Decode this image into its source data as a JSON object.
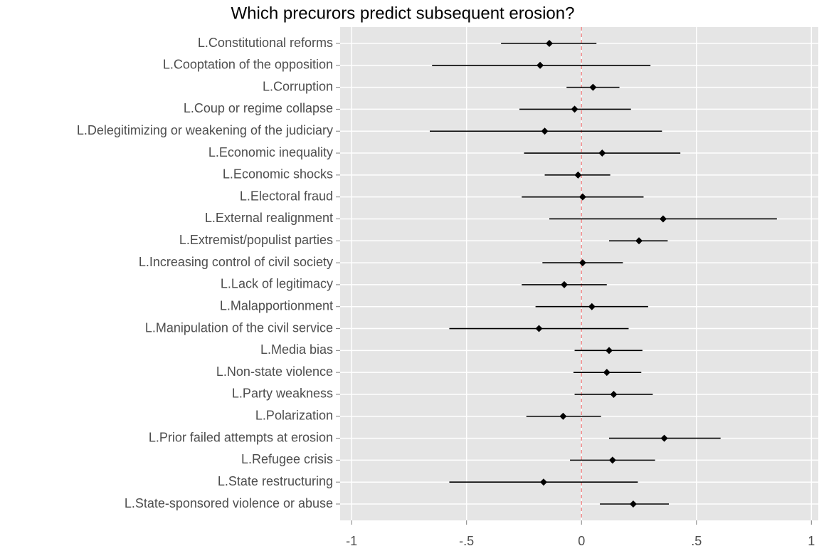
{
  "chart_data": {
    "type": "coefplot",
    "title": "Which precurors predict subsequent erosion?",
    "categories": [
      "L.Constitutional reforms",
      "L.Cooptation of the opposition",
      "L.Corruption",
      "L.Coup or regime collapse",
      "L.Delegitimizing or weakening of the judiciary",
      "L.Economic inequality",
      "L.Economic shocks",
      "L.Electoral fraud",
      "L.External realignment",
      "L.Extremist/populist parties",
      "L.Increasing control of civil society",
      "L.Lack of legitimacy",
      "L.Malapportionment",
      "L.Manipulation of the civil service",
      "L.Media bias",
      "L.Non-state violence",
      "L.Party weakness",
      "L.Polarization",
      "L.Prior failed attempts at erosion",
      "L.Refugee crisis",
      "L.State restructuring",
      "L.State-sponsored violence or abuse"
    ],
    "values": [
      -0.14,
      -0.18,
      0.05,
      -0.03,
      -0.16,
      0.09,
      -0.015,
      0.005,
      0.355,
      0.25,
      0.005,
      -0.075,
      0.045,
      -0.185,
      0.12,
      0.11,
      0.14,
      -0.08,
      0.36,
      0.135,
      -0.165,
      0.225
    ],
    "lower": [
      -0.35,
      -0.65,
      -0.065,
      -0.27,
      -0.66,
      -0.25,
      -0.16,
      -0.26,
      -0.14,
      0.12,
      -0.17,
      -0.26,
      -0.2,
      -0.575,
      -0.03,
      -0.035,
      -0.03,
      -0.24,
      0.12,
      -0.05,
      -0.575,
      0.08
    ],
    "upper": [
      0.065,
      0.3,
      0.165,
      0.215,
      0.35,
      0.43,
      0.125,
      0.27,
      0.85,
      0.375,
      0.18,
      0.11,
      0.29,
      0.205,
      0.265,
      0.26,
      0.31,
      0.085,
      0.605,
      0.32,
      0.245,
      0.38
    ],
    "color": "#000000",
    "xlim": [
      -1.05,
      1.03
    ],
    "xticks": [
      -1,
      {
        "value": -0.5,
        "label": "-.5"
      },
      0,
      {
        "value": 0.5,
        "label": ".5"
      },
      1
    ],
    "reference_line": 0,
    "reference_line_color": "#f08080",
    "grid": true
  }
}
